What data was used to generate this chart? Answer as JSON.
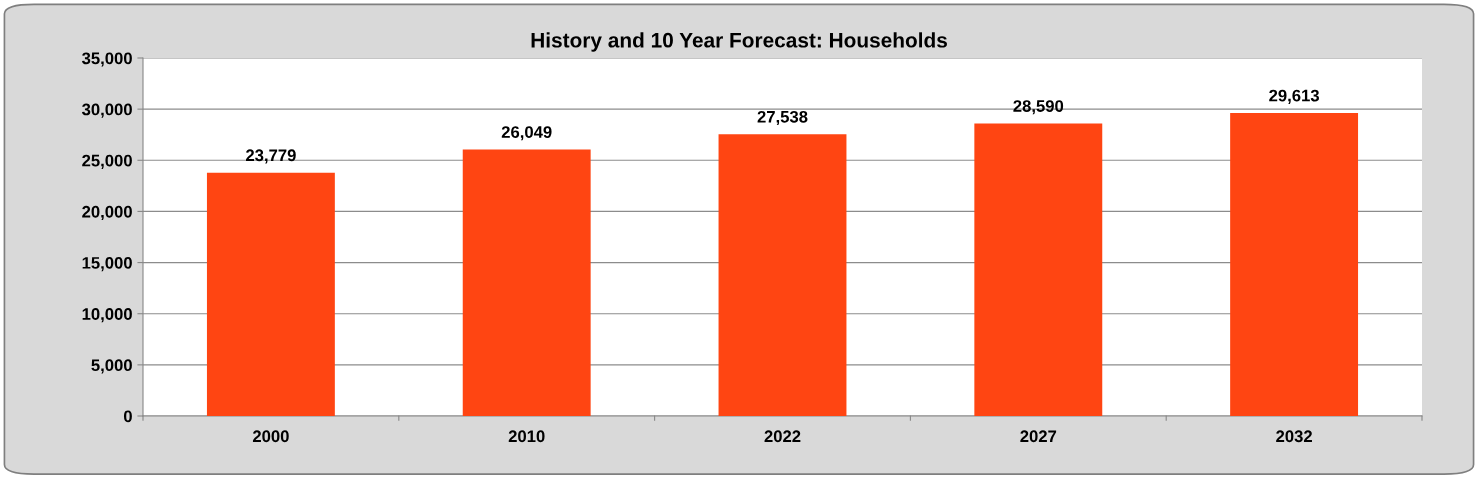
{
  "chart_data": {
    "type": "bar",
    "title": "History and 10 Year Forecast: Households",
    "categories": [
      "2000",
      "2010",
      "2022",
      "2027",
      "2032"
    ],
    "values": [
      23779,
      26049,
      27538,
      28590,
      29613
    ],
    "color": "#ff4512",
    "ylim": [
      0,
      35000
    ],
    "yticks": [
      0,
      {
        "value": 5000,
        "label": "5,000"
      },
      {
        "value": 10000,
        "label": "10,000"
      },
      {
        "value": 15000,
        "label": "15,000"
      },
      {
        "value": 20000,
        "label": "20,000"
      },
      {
        "value": 25000,
        "label": "25,000"
      },
      {
        "value": 30000,
        "label": "30,000"
      },
      {
        "value": 35000,
        "label": "35,000"
      }
    ],
    "value_labels": [
      "23,779",
      "26,049",
      "27,538",
      "28,590",
      "29,613"
    ],
    "grid": "y"
  }
}
